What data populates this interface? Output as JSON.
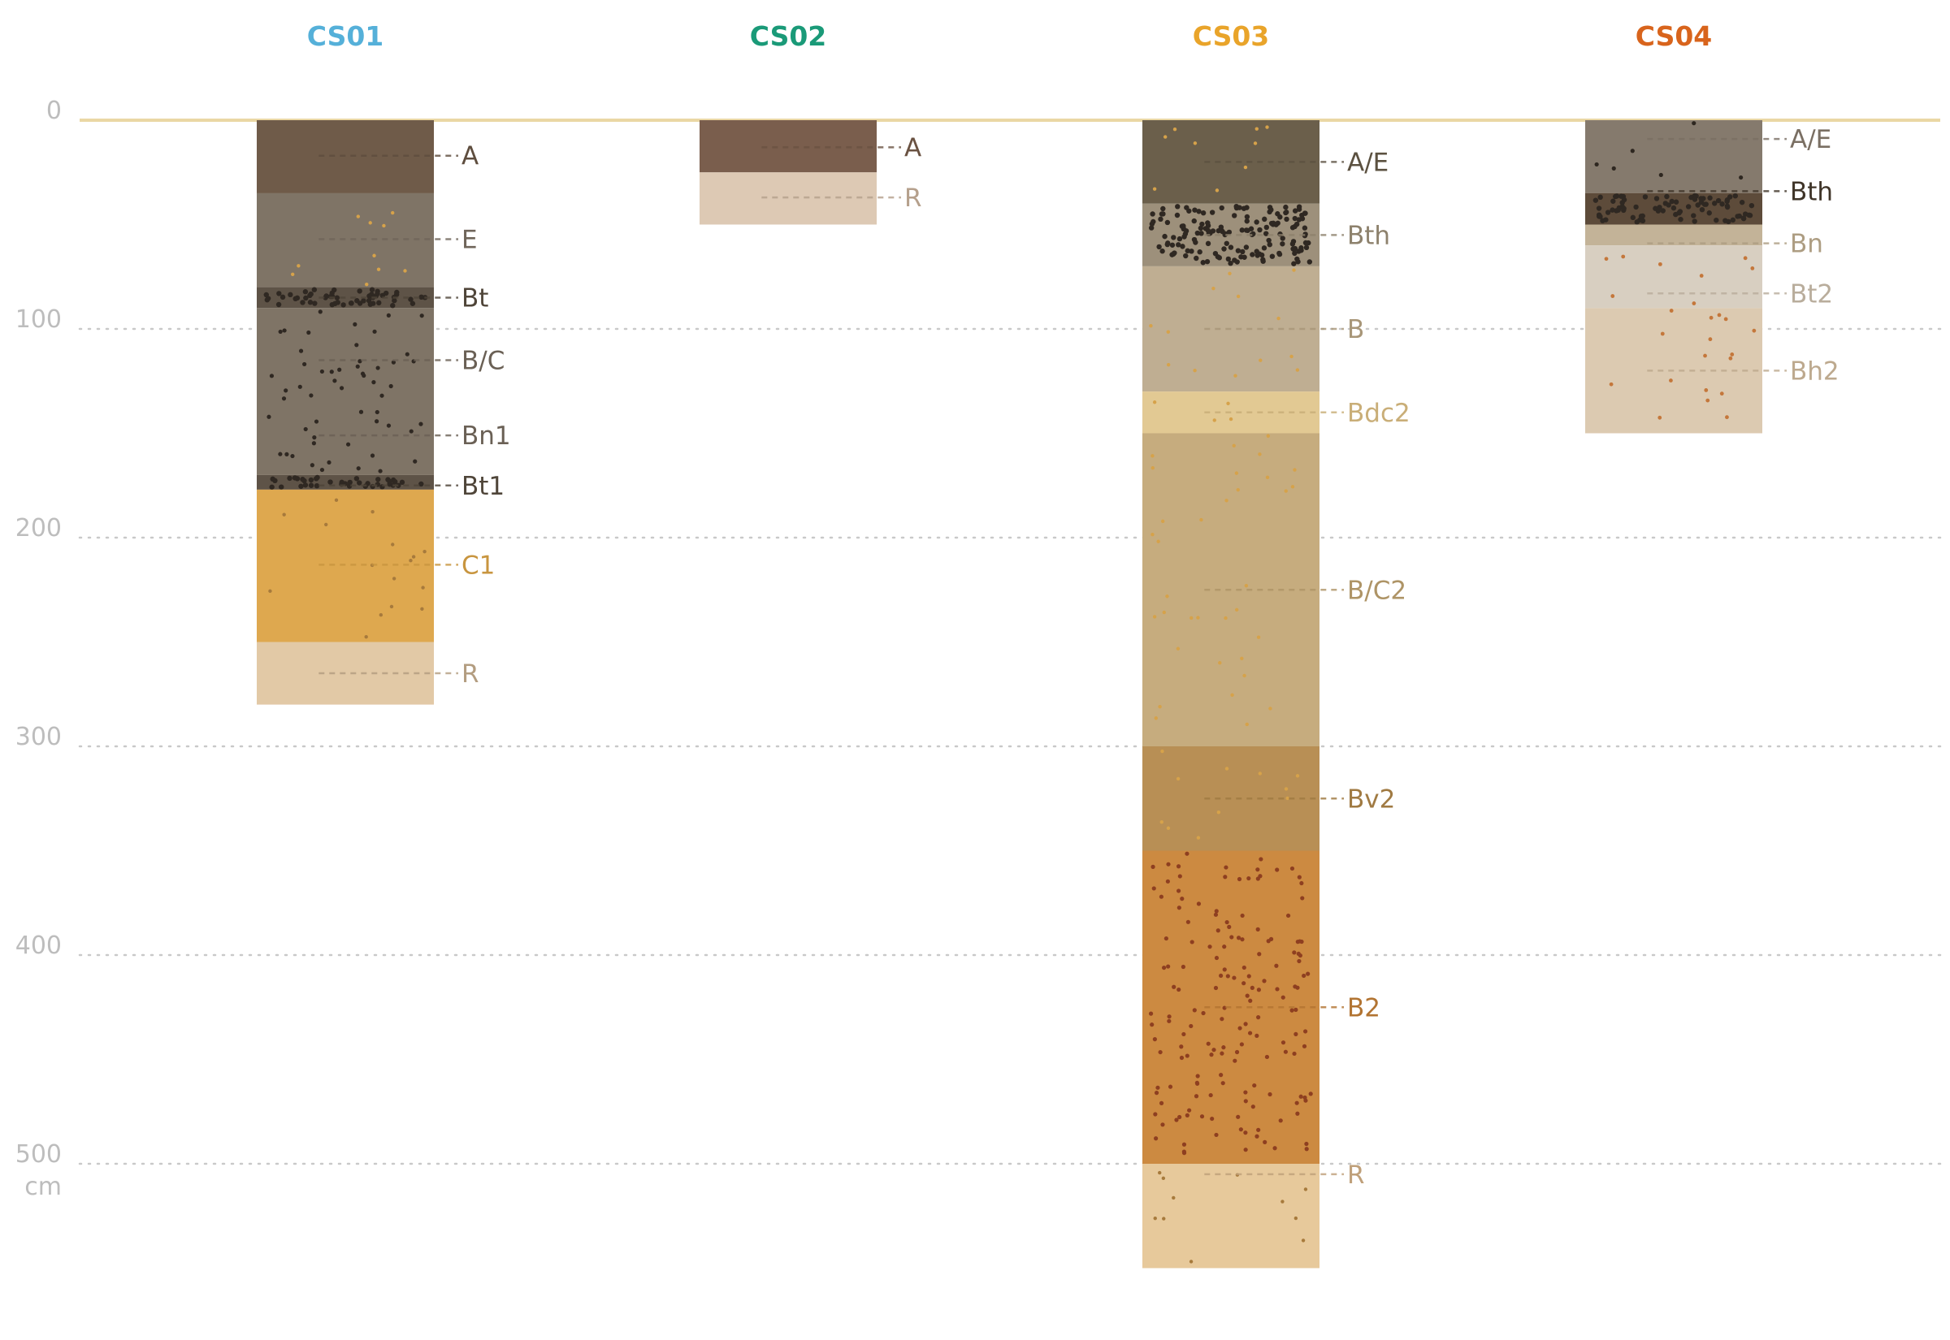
{
  "chart_data": {
    "type": "soil-profile",
    "unit_label": "cm",
    "y_ticks": [
      {
        "value": 0,
        "label": "0"
      },
      {
        "value": 100,
        "label": "100"
      },
      {
        "value": 200,
        "label": "200"
      },
      {
        "value": 300,
        "label": "300"
      },
      {
        "value": 400,
        "label": "400"
      },
      {
        "value": 500,
        "label": "500"
      }
    ],
    "ylim": [
      0,
      580
    ],
    "colors": {
      "surface": "#ead7a4",
      "grid": "#c9c9c9",
      "tick": "#bdbdbd"
    },
    "profiles": [
      {
        "name": "CS01",
        "color": "#55b0d9",
        "horizons": [
          {
            "label": "A",
            "top": 0,
            "bottom": 35,
            "color": "#6f5b49",
            "label_color": "#5e4d3e",
            "dots": "none"
          },
          {
            "label": "E",
            "top": 35,
            "bottom": 80,
            "color": "#7f7466",
            "label_color": "#6f655a",
            "dots": "sparse-ochre"
          },
          {
            "label": "Bt",
            "top": 80,
            "bottom": 90,
            "color": "#5e5347",
            "label_color": "#4f4539",
            "dots": "dense-dark"
          },
          {
            "label": "B/C",
            "top": 90,
            "bottom": 170,
            "color": "#7f7466",
            "label_color": "#6a6055",
            "dots": "medium-dark"
          },
          {
            "label": "Bn1",
            "top": 170,
            "bottom": 170,
            "color": "#7f7466",
            "label_color": "#6a6055",
            "dots": "none"
          },
          {
            "label": "Bt1",
            "top": 170,
            "bottom": 177,
            "color": "#5e5347",
            "label_color": "#4f4539",
            "dots": "dense-dark"
          },
          {
            "label": "C1",
            "top": 177,
            "bottom": 250,
            "color": "#dea84f",
            "label_color": "#c8953f",
            "dots": "sparse-brown"
          },
          {
            "label": "R",
            "top": 250,
            "bottom": 280,
            "color": "#e2c9a6",
            "label_color": "#b39d80",
            "dots": "none"
          }
        ],
        "label_depths": [
          17,
          57,
          85,
          115,
          151,
          175,
          213,
          265
        ]
      },
      {
        "name": "CS02",
        "color": "#1a9a78",
        "horizons": [
          {
            "label": "A",
            "top": 0,
            "bottom": 25,
            "color": "#7a5e4d",
            "label_color": "#6a5242",
            "dots": "none"
          },
          {
            "label": "R",
            "top": 25,
            "bottom": 50,
            "color": "#ddc9b4",
            "label_color": "#b5a08c",
            "dots": "none"
          }
        ],
        "label_depths": [
          13,
          37
        ]
      },
      {
        "name": "CS03",
        "color": "#e9a42a",
        "horizons": [
          {
            "label": "A/E",
            "top": 0,
            "bottom": 40,
            "color": "#6b5f4b",
            "label_color": "#5b5140",
            "dots": "sparse-ochre"
          },
          {
            "label": "Bth",
            "top": 40,
            "bottom": 70,
            "color": "#9d907b",
            "label_color": "#8d816c",
            "dots": "dense-dark"
          },
          {
            "label": "B",
            "top": 70,
            "bottom": 130,
            "color": "#bfae92",
            "label_color": "#a89678",
            "dots": "sparse-ochre"
          },
          {
            "label": "Bdc2",
            "top": 130,
            "bottom": 150,
            "color": "#e2c993",
            "label_color": "#c9ae78",
            "dots": "sparse-ochre"
          },
          {
            "label": "B/C2",
            "top": 150,
            "bottom": 300,
            "color": "#c6ac7e",
            "label_color": "#ae9466",
            "dots": "sparse-ochre"
          },
          {
            "label": "Bv2",
            "top": 300,
            "bottom": 350,
            "color": "#b88f55",
            "label_color": "#a07a42",
            "dots": "sparse-ochre"
          },
          {
            "label": "B2",
            "top": 350,
            "bottom": 500,
            "color": "#cc8a41",
            "label_color": "#b27432",
            "dots": "dense-rust"
          },
          {
            "label": "R",
            "top": 500,
            "bottom": 550,
            "color": "#e7c99b",
            "label_color": "#bfa07a",
            "dots": "sparse-brown"
          }
        ],
        "label_depths": [
          20,
          55,
          100,
          140,
          225,
          325,
          425,
          505
        ]
      },
      {
        "name": "CS04",
        "color": "#d8641c",
        "horizons": [
          {
            "label": "A/E",
            "top": 0,
            "bottom": 35,
            "color": "#857a6d",
            "label_color": "#7a6f63",
            "dots": "sparse-dark"
          },
          {
            "label": "Bth",
            "top": 35,
            "bottom": 50,
            "color": "#5d4b3a",
            "label_color": "#3f3428",
            "dots": "dense-dark"
          },
          {
            "label": "Bn",
            "top": 50,
            "bottom": 60,
            "color": "#c3b398",
            "label_color": "#ad9d82",
            "dots": "none"
          },
          {
            "label": "Bt2",
            "top": 60,
            "bottom": 90,
            "color": "#d8cfc1",
            "label_color": "#b9ad9c",
            "dots": "sparse-rust"
          },
          {
            "label": "Bh2",
            "top": 90,
            "bottom": 150,
            "color": "#dccab1",
            "label_color": "#bda98e",
            "dots": "sparse-rust"
          }
        ],
        "label_depths": [
          9,
          34,
          59,
          83,
          120
        ]
      }
    ]
  }
}
